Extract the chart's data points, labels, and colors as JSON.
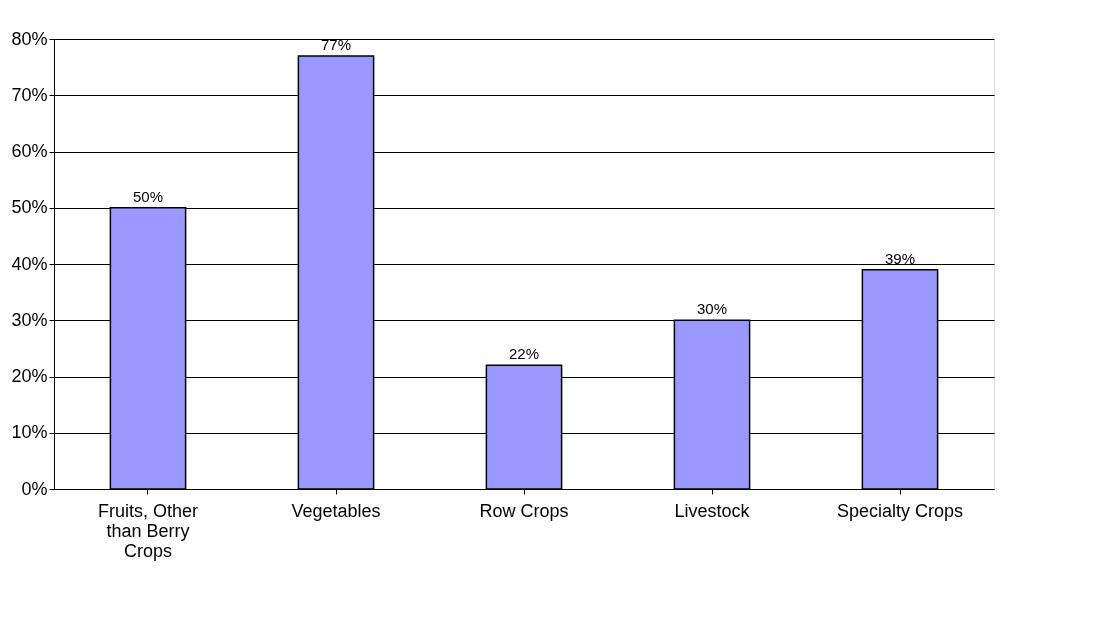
{
  "chart_data": {
    "type": "bar",
    "categories": [
      "Fruits, Other than Berry Crops",
      "Vegetables",
      "Row Crops",
      "Livestock",
      "Specialty Crops"
    ],
    "values": [
      50,
      77,
      22,
      30,
      39
    ],
    "value_labels": [
      "50%",
      "77%",
      "22%",
      "30%",
      "39%"
    ],
    "color": "#9999ff",
    "ylim": [
      0,
      80
    ],
    "yticks": [
      {
        "value": 0,
        "label": "0%"
      },
      {
        "value": 10,
        "label": "10%"
      },
      {
        "value": 20,
        "label": "20%"
      },
      {
        "value": 30,
        "label": "30%"
      },
      {
        "value": 40,
        "label": "40%"
      },
      {
        "value": 50,
        "label": "50%"
      },
      {
        "value": 60,
        "label": "60%"
      },
      {
        "value": 70,
        "label": "70%"
      },
      {
        "value": 80,
        "label": "80%"
      }
    ],
    "grid": "y"
  }
}
